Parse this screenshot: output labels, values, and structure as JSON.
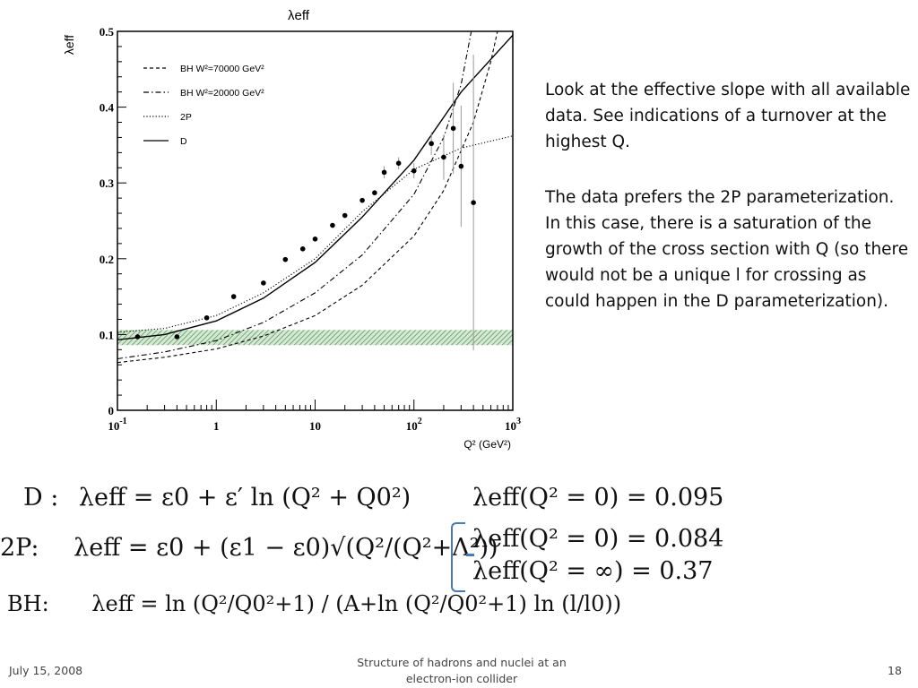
{
  "chart_data": {
    "type": "scatter",
    "title": "λeff",
    "ylabel": "λeff",
    "xlabel": "Q² (GeV²)",
    "x_scale": "log",
    "xlim": [
      0.1,
      1000
    ],
    "ylim": [
      0,
      0.5
    ],
    "x_ticks": [
      {
        "value": 0.1,
        "label": "10",
        "sup": "-1"
      },
      {
        "value": 1,
        "label": "1",
        "sup": ""
      },
      {
        "value": 10,
        "label": "10",
        "sup": ""
      },
      {
        "value": 100,
        "label": "10",
        "sup": "2"
      },
      {
        "value": 1000,
        "label": "10",
        "sup": "3"
      }
    ],
    "y_ticks": [
      0,
      0.1,
      0.2,
      0.3,
      0.4,
      0.5
    ],
    "y_tick_labels": [
      "0",
      "0.1",
      "0.2",
      "0.3",
      "0.4",
      "0.5"
    ],
    "data_points": [
      {
        "x": 0.16,
        "y": 0.097,
        "err": 0
      },
      {
        "x": 0.4,
        "y": 0.097,
        "err": 0
      },
      {
        "x": 0.8,
        "y": 0.122,
        "err": 0
      },
      {
        "x": 1.5,
        "y": 0.15,
        "err": 0
      },
      {
        "x": 3,
        "y": 0.168,
        "err": 0
      },
      {
        "x": 5,
        "y": 0.199,
        "err": 0
      },
      {
        "x": 7.5,
        "y": 0.213,
        "err": 0
      },
      {
        "x": 10,
        "y": 0.226,
        "err": 0
      },
      {
        "x": 15,
        "y": 0.244,
        "err": 0
      },
      {
        "x": 20,
        "y": 0.257,
        "err": 0
      },
      {
        "x": 30,
        "y": 0.277,
        "err": 0
      },
      {
        "x": 40,
        "y": 0.287,
        "err": 0
      },
      {
        "x": 50,
        "y": 0.314,
        "err": 0.008
      },
      {
        "x": 70,
        "y": 0.326,
        "err": 0.008
      },
      {
        "x": 100,
        "y": 0.316,
        "err": 0.01
      },
      {
        "x": 150,
        "y": 0.352,
        "err": 0.015
      },
      {
        "x": 200,
        "y": 0.334,
        "err": 0.03
      },
      {
        "x": 250,
        "y": 0.372,
        "err": 0.06
      },
      {
        "x": 300,
        "y": 0.322,
        "err": 0.08
      },
      {
        "x": 400,
        "y": 0.274,
        "err": 0.195
      }
    ],
    "band": {
      "y0": 0.086,
      "y1": 0.106,
      "color": "#6da56d"
    },
    "series": [
      {
        "name": "BH W²=70000 GeV²",
        "style": "dashed",
        "points": [
          [
            0.1,
            0.063
          ],
          [
            0.3,
            0.07
          ],
          [
            1,
            0.081
          ],
          [
            3,
            0.098
          ],
          [
            10,
            0.125
          ],
          [
            30,
            0.165
          ],
          [
            100,
            0.23
          ],
          [
            200,
            0.29
          ],
          [
            400,
            0.38
          ],
          [
            600,
            0.46
          ],
          [
            700,
            0.5
          ]
        ]
      },
      {
        "name": "BH W²=20000 GeV²",
        "style": "dashdot",
        "points": [
          [
            0.1,
            0.068
          ],
          [
            0.3,
            0.077
          ],
          [
            1,
            0.092
          ],
          [
            3,
            0.116
          ],
          [
            10,
            0.155
          ],
          [
            30,
            0.205
          ],
          [
            100,
            0.285
          ],
          [
            200,
            0.36
          ],
          [
            300,
            0.43
          ],
          [
            380,
            0.5
          ]
        ]
      },
      {
        "name": "2P",
        "style": "dotted",
        "points": [
          [
            0.1,
            0.103
          ],
          [
            0.3,
            0.108
          ],
          [
            1,
            0.125
          ],
          [
            3,
            0.155
          ],
          [
            10,
            0.2
          ],
          [
            30,
            0.262
          ],
          [
            100,
            0.318
          ],
          [
            300,
            0.346
          ],
          [
            1000,
            0.362
          ]
        ]
      },
      {
        "name": "D",
        "style": "solid",
        "points": [
          [
            0.1,
            0.093
          ],
          [
            0.3,
            0.1
          ],
          [
            1,
            0.118
          ],
          [
            3,
            0.148
          ],
          [
            10,
            0.195
          ],
          [
            30,
            0.255
          ],
          [
            100,
            0.33
          ],
          [
            300,
            0.42
          ],
          [
            1000,
            0.495
          ]
        ]
      }
    ],
    "legend": "top-left",
    "grid": false
  },
  "text": {
    "para1": "Look at the effective slope with all available data.  See indications of a turnover at the highest Q.",
    "para2": "The data prefers the 2P parameterization.  In this case, there is a saturation of the growth of the cross section with Q (so there would not be a unique l for crossing as could happen in the D parameterization)."
  },
  "equations": {
    "d_label": "D :",
    "d_formula": "λeff = ε0 + ε′ ln (Q² + Q0²)",
    "d_result": "λeff(Q² = 0) = 0.095",
    "p2_label": "2P:",
    "p2_formula": "λeff = ε0 + (ε1 − ε0)√(Q²/(Q²+Λ²))",
    "p2_result1": "λeff(Q² = 0) = 0.084",
    "p2_result2": "λeff(Q² = ∞) = 0.37",
    "bh_label": "BH:",
    "bh_formula": "λeff = ln (Q²/Q0²+1) / (A+ln (Q²/Q0²+1) ln (l/l0))"
  },
  "footer": {
    "date": "July 15, 2008",
    "title": "Structure of hadrons and nuclei at an electron-ion collider",
    "page": "18"
  }
}
